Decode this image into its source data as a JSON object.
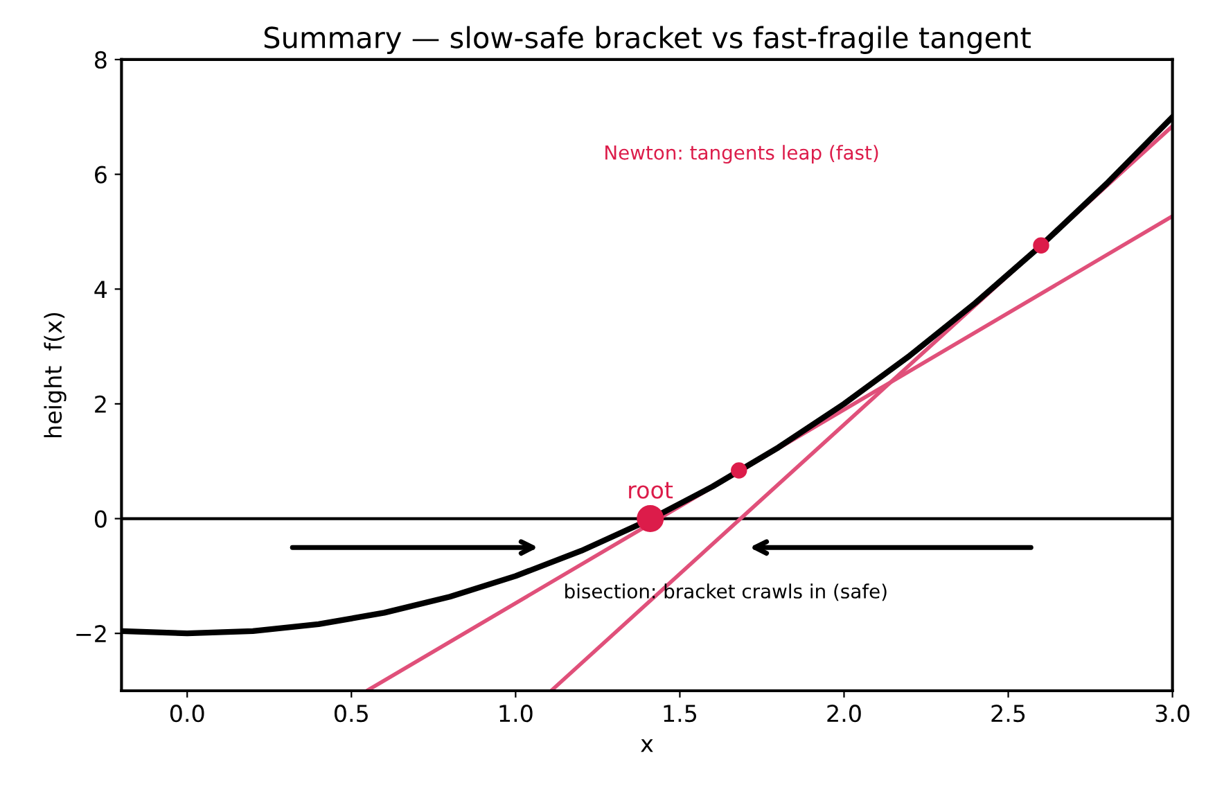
{
  "chart_data": {
    "type": "line",
    "title": "Summary — slow-safe bracket vs fast-fragile tangent",
    "xlabel": "x",
    "ylabel": "height  f(x)",
    "xlim": [
      -0.2,
      3.0
    ],
    "ylim": [
      -3,
      8
    ],
    "xticks": [
      {
        "value": 0,
        "label": "0.0"
      },
      0.5,
      {
        "value": 1,
        "label": "1.0"
      },
      1.5,
      {
        "value": 2,
        "label": "2.0"
      },
      2.5,
      {
        "value": 3,
        "label": "3.0"
      }
    ],
    "yticks": [
      {
        "value": -2,
        "label": "−2"
      },
      0,
      2,
      4,
      6,
      8
    ],
    "grid": false,
    "series": [
      {
        "color": "#000000",
        "x": [
          -0.2,
          0,
          0.2,
          0.4,
          0.6,
          0.8,
          1.0,
          1.2,
          1.4,
          1.6,
          1.8,
          2.0,
          2.2,
          2.4,
          2.6,
          2.8,
          3.0
        ],
        "values": [
          -1.96,
          -2,
          -1.96,
          -1.84,
          -1.64,
          -1.36,
          -1,
          -0.56,
          -0.04,
          0.56,
          1.24,
          2,
          2.84,
          3.76,
          4.76,
          5.84,
          7
        ]
      },
      {
        "color": "#e0507a",
        "x": [
          1.11,
          3.0
        ],
        "values": [
          -2.99,
          6.84
        ]
      },
      {
        "color": "#e0507a",
        "x": [
          0.55,
          3.0
        ],
        "values": [
          -2.99,
          5.27
        ]
      },
      {
        "type": "scatter",
        "color": "#dc1c4a",
        "x": [
          2.6,
          1.68
        ],
        "values": [
          4.76,
          0.84
        ]
      },
      {
        "type": "scatter",
        "color": "#dc1c4a",
        "x": [
          1.41
        ],
        "values": [
          0
        ],
        "sizes": [
          1
        ]
      }
    ],
    "ref_lines": [
      {
        "axis": "y",
        "value": 0,
        "color": "#000000"
      }
    ],
    "annotations": [
      "Newton: tangents leap (fast)",
      "root",
      "bisection: bracket crawls in (safe)"
    ]
  }
}
